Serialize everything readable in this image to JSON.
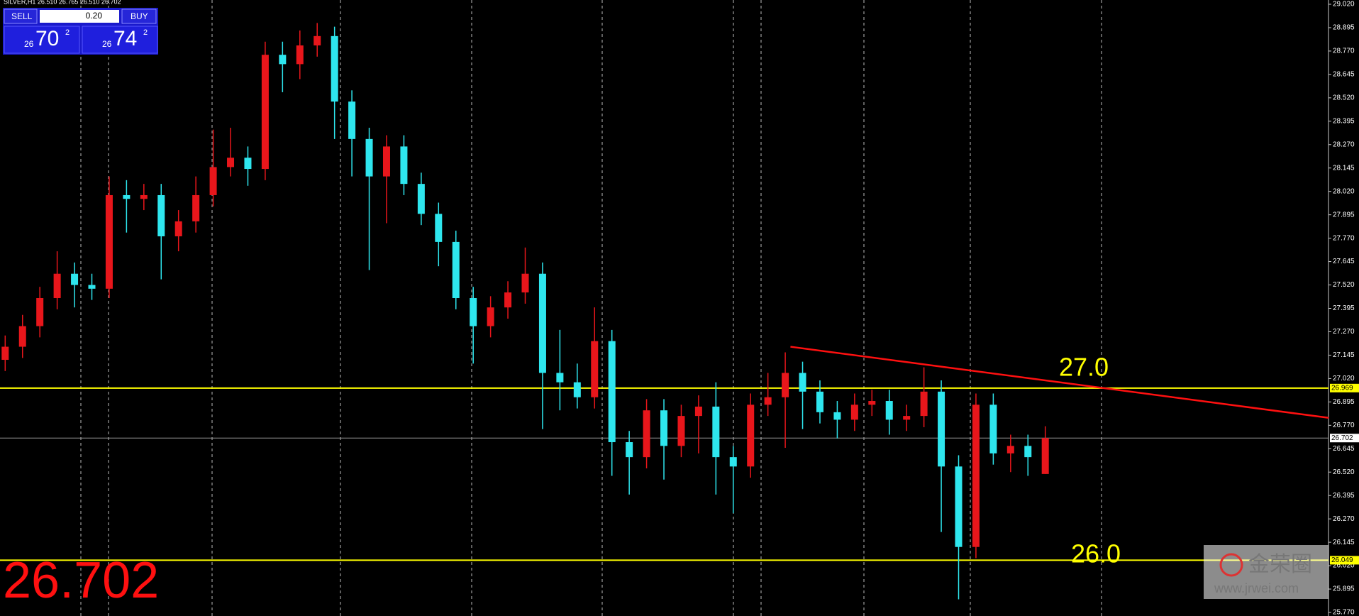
{
  "chart_data": {
    "type": "candlestick",
    "header": "SILVER,H1  26.510 26.765 26.510 26.702",
    "up_color": "#e8161b",
    "down_color": "#2ee6ee",
    "open": [
      27.12,
      27.19,
      27.3,
      27.45,
      27.58,
      27.52,
      27.5,
      28.0,
      27.98,
      28.0,
      27.78,
      27.86,
      28.0,
      28.15,
      28.2,
      28.14,
      28.75,
      28.7,
      28.8,
      28.85,
      28.5,
      28.3,
      28.1,
      28.26,
      28.06,
      27.9,
      27.75,
      27.45,
      27.3,
      27.4,
      27.48,
      27.58,
      27.05,
      27.0,
      26.92,
      27.22,
      26.68,
      26.6,
      26.85,
      26.66,
      26.82,
      26.87,
      26.6,
      26.55,
      26.88,
      26.92,
      27.05,
      26.95,
      26.84,
      26.8,
      26.88,
      26.9,
      26.8,
      26.82,
      26.95,
      26.55,
      26.12,
      26.88,
      26.62,
      26.66,
      26.51
    ],
    "high": [
      27.25,
      27.36,
      27.51,
      27.7,
      27.64,
      27.58,
      28.1,
      28.08,
      28.06,
      28.06,
      27.92,
      28.1,
      28.35,
      28.36,
      28.26,
      28.82,
      28.82,
      28.88,
      28.92,
      28.9,
      28.56,
      28.36,
      28.32,
      28.32,
      28.12,
      27.96,
      27.81,
      27.51,
      27.46,
      27.54,
      27.72,
      27.64,
      27.28,
      27.1,
      27.4,
      27.28,
      26.74,
      26.91,
      26.91,
      26.88,
      26.93,
      27.0,
      26.66,
      26.94,
      27.05,
      27.16,
      27.11,
      27.01,
      26.9,
      26.94,
      26.96,
      26.96,
      26.88,
      27.08,
      27.01,
      26.61,
      26.94,
      26.94,
      26.72,
      26.72,
      26.765
    ],
    "low": [
      27.06,
      27.13,
      27.24,
      27.39,
      27.4,
      27.44,
      27.45,
      27.8,
      27.92,
      27.55,
      27.7,
      27.8,
      27.94,
      28.1,
      28.05,
      28.08,
      28.55,
      28.62,
      28.74,
      28.3,
      28.1,
      27.6,
      27.85,
      28.0,
      27.84,
      27.62,
      27.39,
      27.1,
      27.24,
      27.34,
      27.42,
      26.75,
      26.85,
      26.86,
      26.86,
      26.5,
      26.4,
      26.54,
      26.48,
      26.6,
      26.62,
      26.4,
      26.3,
      26.49,
      26.82,
      26.65,
      26.75,
      26.78,
      26.7,
      26.74,
      26.82,
      26.72,
      26.74,
      26.76,
      26.2,
      25.84,
      26.06,
      26.56,
      26.52,
      26.5,
      26.51
    ],
    "close": [
      27.19,
      27.3,
      27.45,
      27.58,
      27.52,
      27.5,
      28.0,
      27.98,
      28.0,
      27.78,
      27.86,
      28.0,
      28.15,
      28.2,
      28.14,
      28.75,
      28.7,
      28.8,
      28.85,
      28.5,
      28.3,
      28.1,
      28.26,
      28.06,
      27.9,
      27.75,
      27.45,
      27.3,
      27.4,
      27.48,
      27.58,
      27.05,
      27.0,
      26.92,
      27.22,
      26.68,
      26.6,
      26.85,
      26.66,
      26.82,
      26.87,
      26.6,
      26.55,
      26.88,
      26.92,
      27.05,
      26.95,
      26.84,
      26.8,
      26.88,
      26.9,
      26.8,
      26.82,
      26.95,
      26.55,
      26.12,
      26.88,
      26.62,
      26.66,
      26.6,
      26.702
    ],
    "ylim": [
      25.77,
      29.02
    ],
    "yticks": [
      {
        "value": 25.77,
        "label": "25.770"
      },
      {
        "value": 25.895,
        "label": "25.895"
      },
      {
        "value": 26.02,
        "label": "26.020"
      },
      {
        "value": 26.145,
        "label": "26.145"
      },
      {
        "value": 26.27,
        "label": "26.270"
      },
      {
        "value": 26.395,
        "label": "26.395"
      },
      {
        "value": 26.52,
        "label": "26.520"
      },
      {
        "value": 26.645,
        "label": "26.645"
      },
      {
        "value": 26.77,
        "label": "26.770"
      },
      {
        "value": 26.895,
        "label": "26.895"
      },
      {
        "value": 27.02,
        "label": "27.020"
      },
      {
        "value": 27.145,
        "label": "27.145"
      },
      {
        "value": 27.27,
        "label": "27.270"
      },
      {
        "value": 27.395,
        "label": "27.395"
      },
      {
        "value": 27.52,
        "label": "27.520"
      },
      {
        "value": 27.645,
        "label": "27.645"
      },
      {
        "value": 27.77,
        "label": "27.770"
      },
      {
        "value": 27.895,
        "label": "27.895"
      },
      {
        "value": 28.02,
        "label": "28.020"
      },
      {
        "value": 28.145,
        "label": "28.145"
      },
      {
        "value": 28.27,
        "label": "28.270"
      },
      {
        "value": 28.395,
        "label": "28.395"
      },
      {
        "value": 28.52,
        "label": "28.520"
      },
      {
        "value": 28.645,
        "label": "28.645"
      },
      {
        "value": 28.77,
        "label": "28.770"
      },
      {
        "value": 28.895,
        "label": "28.895"
      },
      {
        "value": 29.02,
        "label": "29.020"
      }
    ],
    "hlines": [
      {
        "value": 26.969,
        "label": "26.969",
        "color": "#ffff00"
      },
      {
        "value": 26.702,
        "label": "26.702",
        "color": "#9a9a9a"
      },
      {
        "value": 26.049,
        "label": "26.049",
        "color": "#ffff00"
      }
    ],
    "trendline": {
      "x": [
        45.3,
        76.35
      ],
      "y": [
        27.19,
        26.81
      ],
      "color": "#ff1010"
    },
    "annotations": [
      "27.0",
      "26.0"
    ],
    "price_label": "26.702"
  },
  "trade_panel": {
    "sell": "SELL",
    "buy": "BUY",
    "lot": "0.20",
    "bid": {
      "big": "26",
      "main": "70",
      "sup": "2"
    },
    "ask": {
      "big": "26",
      "main": "74",
      "sup": "2"
    }
  },
  "watermark": {
    "name": "金荣圈",
    "url": "www.jrwei.com"
  }
}
